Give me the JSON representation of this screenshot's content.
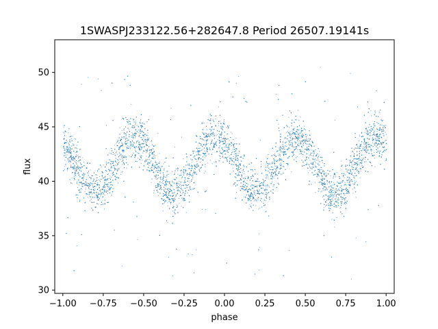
{
  "chart_data": {
    "type": "scatter",
    "title": "1SWASPJ233122.56+282647.8 Period 26507.19141s",
    "xlabel": "phase",
    "ylabel": "flux",
    "xlim": [
      -1.05,
      1.05
    ],
    "ylim": [
      29.7,
      53.0
    ],
    "x_ticks": [
      -1.0,
      -0.75,
      -0.5,
      -0.25,
      0.0,
      0.25,
      0.5,
      0.75,
      1.0
    ],
    "x_tick_labels": [
      "−1.00",
      "−0.75",
      "−0.50",
      "−0.25",
      "0.00",
      "0.25",
      "0.50",
      "0.75",
      "1.00"
    ],
    "y_ticks": [
      30,
      35,
      40,
      45,
      50
    ],
    "y_tick_labels": [
      "30",
      "35",
      "40",
      "45",
      "50"
    ],
    "grid": false,
    "legend": "none",
    "point_color": "#1f77b4",
    "series": [
      {
        "x": [
          -1.0,
          -0.95,
          -0.9,
          -0.85,
          -0.8,
          -0.75,
          -0.7,
          -0.65,
          -0.6,
          -0.55,
          -0.5,
          -0.45,
          -0.4,
          -0.35,
          -0.3,
          -0.25,
          -0.2,
          -0.15,
          -0.1,
          -0.05,
          0.0,
          0.05,
          0.1,
          0.15,
          0.2,
          0.25,
          0.3,
          0.35,
          0.4,
          0.45,
          0.5,
          0.55,
          0.6,
          0.65,
          0.7,
          0.75,
          0.8,
          0.85,
          0.9,
          0.95,
          1.0
        ],
        "y": [
          43.2,
          42.3,
          40.8,
          39.7,
          39.2,
          39.4,
          40.9,
          42.6,
          43.8,
          44.0,
          43.6,
          42.0,
          40.2,
          39.1,
          38.9,
          39.6,
          41.2,
          42.8,
          43.9,
          44.1,
          43.7,
          42.5,
          40.6,
          39.4,
          39.1,
          39.5,
          41.1,
          42.7,
          43.8,
          44.0,
          43.5,
          41.9,
          40.1,
          39.0,
          38.9,
          39.7,
          41.3,
          42.9,
          43.9,
          44.0,
          43.4
        ]
      }
    ],
    "scatter_spread": 1.4,
    "outlier_range": [
      31,
      51
    ]
  }
}
